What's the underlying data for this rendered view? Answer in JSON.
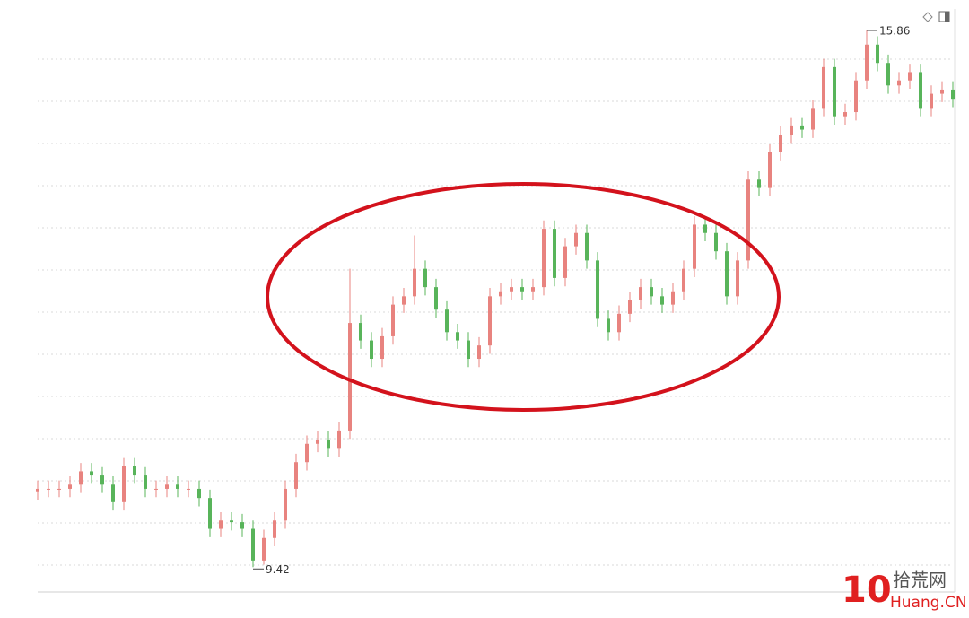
{
  "chart_data": {
    "type": "candlestick",
    "up_color": "#e8837f",
    "down_color": "#58b45a",
    "ylim": [
      9.1,
      16.2
    ],
    "open": [
      10.33,
      10.36,
      10.36,
      10.36,
      10.41,
      10.57,
      10.52,
      10.41,
      10.2,
      10.63,
      10.52,
      10.36,
      10.36,
      10.41,
      10.36,
      10.36,
      10.25,
      9.88,
      9.98,
      9.96,
      9.88,
      9.5,
      9.77,
      9.98,
      10.36,
      10.68,
      10.9,
      10.95,
      10.84,
      11.06,
      12.35,
      12.14,
      11.92,
      12.19,
      12.57,
      12.67,
      13.0,
      12.78,
      12.51,
      12.24,
      12.14,
      11.92,
      12.08,
      12.67,
      12.73,
      12.78,
      12.73,
      12.78,
      13.48,
      12.89,
      13.27,
      13.43,
      13.1,
      12.4,
      12.24,
      12.46,
      12.62,
      12.78,
      12.67,
      12.57,
      12.73,
      13.0,
      13.53,
      13.43,
      13.21,
      12.67,
      13.1,
      14.07,
      13.97,
      14.4,
      14.61,
      14.72,
      14.67,
      14.93,
      15.42,
      14.83,
      14.88,
      15.26,
      15.69,
      15.47,
      15.2,
      15.26,
      15.36,
      14.93,
      15.1,
      15.15
    ],
    "high": [
      10.46,
      10.46,
      10.46,
      10.51,
      10.67,
      10.67,
      10.62,
      10.51,
      10.73,
      10.73,
      10.62,
      10.46,
      10.51,
      10.51,
      10.46,
      10.46,
      10.35,
      10.08,
      10.08,
      10.06,
      9.98,
      9.87,
      10.08,
      10.46,
      10.78,
      11.0,
      11.05,
      11.05,
      11.16,
      13.0,
      12.45,
      12.24,
      12.29,
      12.67,
      12.77,
      13.4,
      13.1,
      12.88,
      12.61,
      12.34,
      12.24,
      12.18,
      12.77,
      12.83,
      12.88,
      12.88,
      12.88,
      13.58,
      13.58,
      13.37,
      13.53,
      13.53,
      13.2,
      12.5,
      12.56,
      12.72,
      12.88,
      12.88,
      12.77,
      12.83,
      13.1,
      13.63,
      13.63,
      13.53,
      13.31,
      13.2,
      14.17,
      14.17,
      14.5,
      14.71,
      14.82,
      14.82,
      15.03,
      15.52,
      15.52,
      14.98,
      15.36,
      15.86,
      15.79,
      15.57,
      15.36,
      15.46,
      15.46,
      15.2,
      15.25,
      15.25
    ],
    "low": [
      10.23,
      10.26,
      10.26,
      10.26,
      10.31,
      10.42,
      10.31,
      10.1,
      10.1,
      10.42,
      10.26,
      10.26,
      10.26,
      10.26,
      10.26,
      10.15,
      9.78,
      9.78,
      9.86,
      9.78,
      9.42,
      9.45,
      9.67,
      9.88,
      10.26,
      10.58,
      10.8,
      10.74,
      10.74,
      10.96,
      12.04,
      11.82,
      11.82,
      12.09,
      12.47,
      12.57,
      12.68,
      12.41,
      12.14,
      12.04,
      11.82,
      11.82,
      11.98,
      12.57,
      12.63,
      12.63,
      12.63,
      12.68,
      12.79,
      12.79,
      13.17,
      13.0,
      12.3,
      12.14,
      12.14,
      12.36,
      12.52,
      12.57,
      12.47,
      12.47,
      12.63,
      12.9,
      13.33,
      13.11,
      12.57,
      12.57,
      13.0,
      13.87,
      13.87,
      14.3,
      14.51,
      14.57,
      14.57,
      14.83,
      14.73,
      14.73,
      14.78,
      15.16,
      15.37,
      15.1,
      15.1,
      15.16,
      14.83,
      14.83,
      15.0,
      14.94
    ],
    "close": [
      10.36,
      10.36,
      10.36,
      10.41,
      10.57,
      10.52,
      10.41,
      10.2,
      10.63,
      10.52,
      10.36,
      10.36,
      10.41,
      10.36,
      10.36,
      10.25,
      9.88,
      9.98,
      9.96,
      9.88,
      9.5,
      9.77,
      9.98,
      10.36,
      10.68,
      10.9,
      10.95,
      10.84,
      11.06,
      12.35,
      12.14,
      11.92,
      12.19,
      12.57,
      12.67,
      13.0,
      12.78,
      12.51,
      12.24,
      12.14,
      11.92,
      12.08,
      12.67,
      12.73,
      12.78,
      12.73,
      12.78,
      13.48,
      12.89,
      13.27,
      13.43,
      13.1,
      12.4,
      12.24,
      12.46,
      12.62,
      12.78,
      12.67,
      12.57,
      12.73,
      13.0,
      13.53,
      13.43,
      13.21,
      12.67,
      13.1,
      14.07,
      13.97,
      14.4,
      14.61,
      14.72,
      14.67,
      14.93,
      15.42,
      14.83,
      14.88,
      15.26,
      15.69,
      15.47,
      15.2,
      15.26,
      15.36,
      14.93,
      15.1,
      15.15,
      15.04
    ]
  },
  "watermark": {
    "logo": "10",
    "site_name": "拾荒网",
    "domain": "Huang.CN"
  }
}
